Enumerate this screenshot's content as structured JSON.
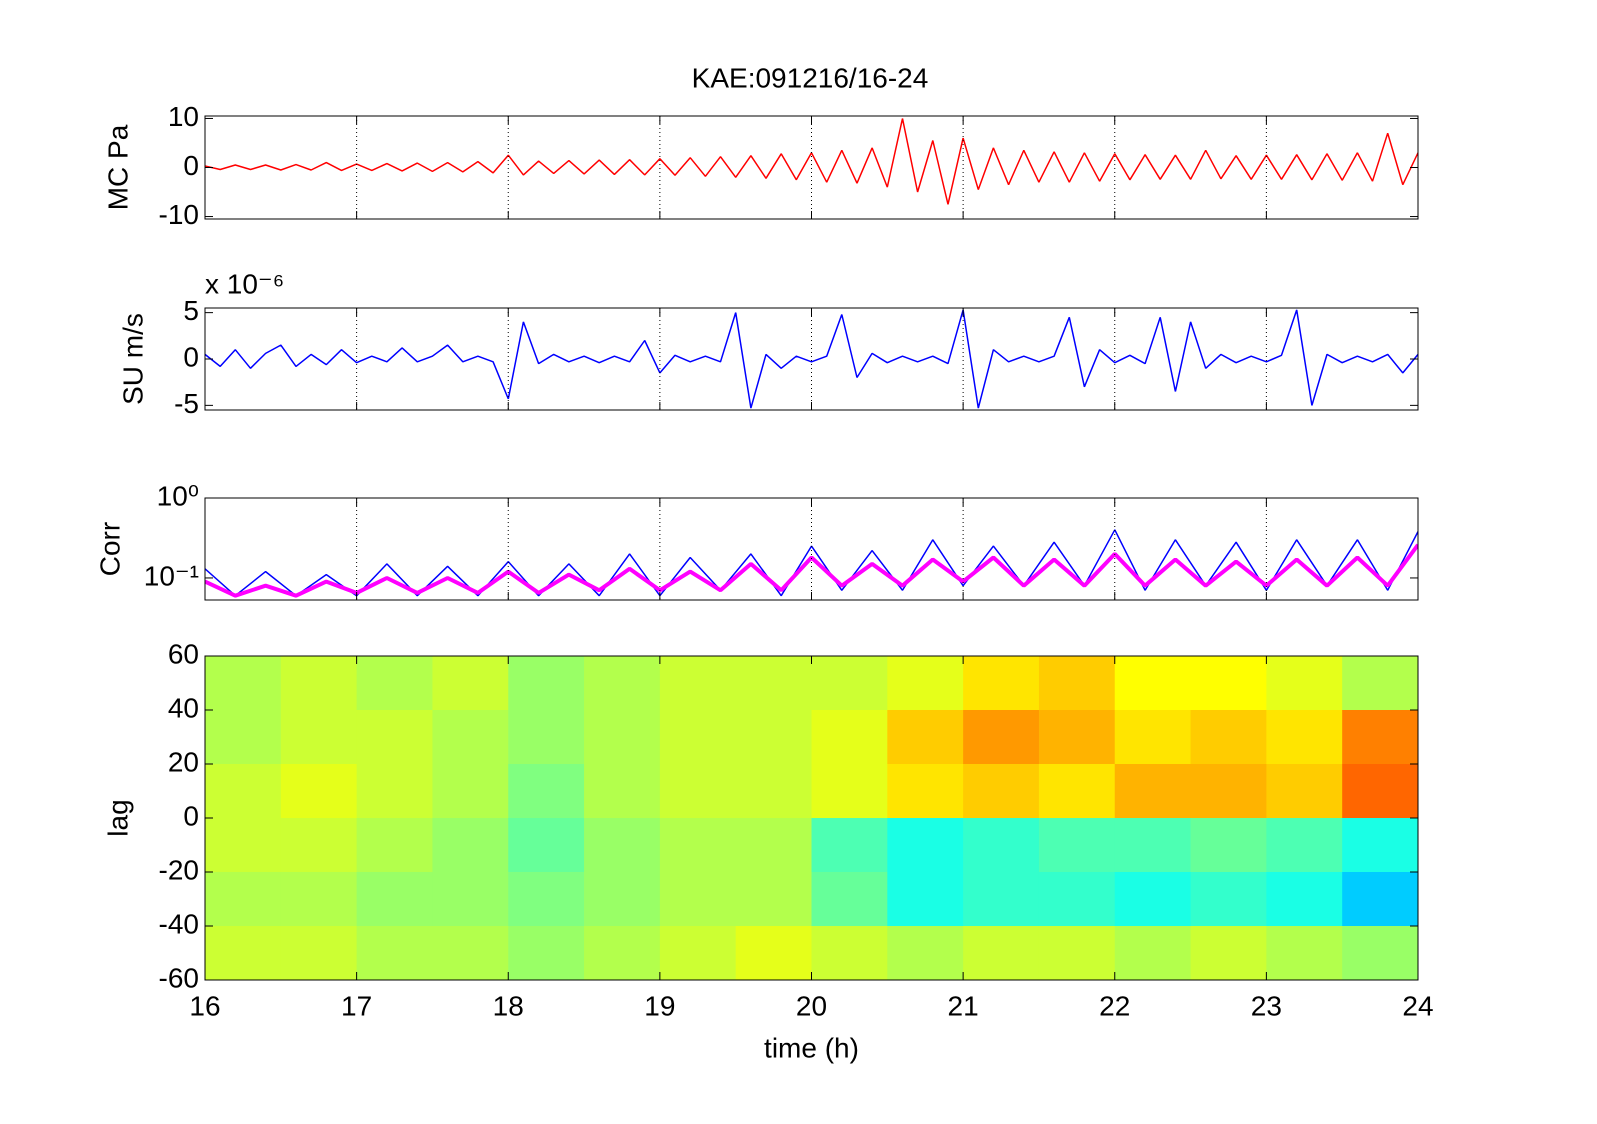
{
  "chart_data": [
    {
      "type": "line",
      "title": "KAE:091216/16-24",
      "ylabel": "MC Pa",
      "color": "#ff0000",
      "xlim": [
        16,
        24
      ],
      "xticks": [
        16,
        17,
        18,
        19,
        20,
        21,
        22,
        23,
        24
      ],
      "grid": true,
      "ylim": [
        -10.5,
        10.5
      ],
      "yticks": [
        -10,
        0,
        10
      ],
      "x": [
        16.0,
        16.1,
        16.2,
        16.3,
        16.4,
        16.5,
        16.6,
        16.7,
        16.8,
        16.9,
        17.0,
        17.1,
        17.2,
        17.3,
        17.4,
        17.5,
        17.6,
        17.7,
        17.8,
        17.9,
        18.0,
        18.1,
        18.2,
        18.3,
        18.4,
        18.5,
        18.6,
        18.7,
        18.8,
        18.9,
        19.0,
        19.1,
        19.2,
        19.3,
        19.4,
        19.5,
        19.6,
        19.7,
        19.8,
        19.9,
        20.0,
        20.1,
        20.2,
        20.3,
        20.4,
        20.5,
        20.6,
        20.7,
        20.8,
        20.9,
        21.0,
        21.1,
        21.2,
        21.3,
        21.4,
        21.5,
        21.6,
        21.7,
        21.8,
        21.9,
        22.0,
        22.1,
        22.2,
        22.3,
        22.4,
        22.5,
        22.6,
        22.7,
        22.8,
        22.9,
        23.0,
        23.1,
        23.2,
        23.3,
        23.4,
        23.5,
        23.6,
        23.7,
        23.8,
        23.9,
        24.0
      ],
      "values": [
        0.3,
        -0.4,
        0.5,
        -0.4,
        0.5,
        -0.5,
        0.6,
        -0.5,
        1.0,
        -0.6,
        0.7,
        -0.6,
        0.8,
        -0.7,
        0.9,
        -0.8,
        1.0,
        -0.9,
        1.2,
        -1.1,
        2.5,
        -1.5,
        1.3,
        -1.2,
        1.4,
        -1.3,
        1.5,
        -1.4,
        1.6,
        -1.5,
        1.8,
        -1.6,
        2.0,
        -1.8,
        2.2,
        -2.0,
        2.4,
        -2.2,
        2.8,
        -2.5,
        3.0,
        -3.0,
        3.5,
        -3.2,
        4.0,
        -4.0,
        10.0,
        -5.0,
        5.5,
        -7.5,
        6.0,
        -4.5,
        4.0,
        -3.5,
        3.5,
        -3.0,
        3.2,
        -3.0,
        3.0,
        -2.8,
        2.8,
        -2.5,
        2.6,
        -2.4,
        2.5,
        -2.4,
        3.5,
        -2.3,
        2.4,
        -2.4,
        2.5,
        -2.4,
        2.6,
        -2.5,
        2.8,
        -2.6,
        3.0,
        -2.8,
        7.0,
        -3.5,
        3.0
      ]
    },
    {
      "type": "line",
      "ylabel": "SU m/s",
      "exponent_label": "x 10⁻⁶",
      "color": "#0000ff",
      "xlim": [
        16,
        24
      ],
      "xticks": [
        16,
        17,
        18,
        19,
        20,
        21,
        22,
        23,
        24
      ],
      "grid": true,
      "ylim": [
        -5.5,
        5.5
      ],
      "yticks": [
        -5,
        0,
        5
      ],
      "x": [
        16.0,
        16.1,
        16.2,
        16.3,
        16.4,
        16.5,
        16.6,
        16.7,
        16.8,
        16.9,
        17.0,
        17.1,
        17.2,
        17.3,
        17.4,
        17.5,
        17.6,
        17.7,
        17.8,
        17.9,
        18.0,
        18.1,
        18.2,
        18.3,
        18.4,
        18.5,
        18.6,
        18.7,
        18.8,
        18.9,
        19.0,
        19.1,
        19.2,
        19.3,
        19.4,
        19.5,
        19.6,
        19.7,
        19.8,
        19.9,
        20.0,
        20.1,
        20.2,
        20.3,
        20.4,
        20.5,
        20.6,
        20.7,
        20.8,
        20.9,
        21.0,
        21.1,
        21.2,
        21.3,
        21.4,
        21.5,
        21.6,
        21.7,
        21.8,
        21.9,
        22.0,
        22.1,
        22.2,
        22.3,
        22.4,
        22.5,
        22.6,
        22.7,
        22.8,
        22.9,
        23.0,
        23.1,
        23.2,
        23.3,
        23.4,
        23.5,
        23.6,
        23.7,
        23.8,
        23.9,
        24.0
      ],
      "values": [
        0.5,
        -0.8,
        1.0,
        -1.0,
        0.6,
        1.5,
        -0.8,
        0.5,
        -0.6,
        1.0,
        -0.4,
        0.3,
        -0.3,
        1.2,
        -0.3,
        0.3,
        1.5,
        -0.3,
        0.3,
        -0.3,
        -4.3,
        4.0,
        -0.5,
        0.5,
        -0.3,
        0.3,
        -0.4,
        0.3,
        -0.3,
        2.0,
        -1.5,
        0.4,
        -0.3,
        0.3,
        -0.3,
        5.0,
        -5.3,
        0.5,
        -1.0,
        0.3,
        -0.3,
        0.3,
        4.8,
        -2.0,
        0.6,
        -0.4,
        0.3,
        -0.3,
        0.3,
        -0.5,
        5.3,
        -5.3,
        1.0,
        -0.3,
        0.3,
        -0.3,
        0.3,
        4.5,
        -3.0,
        1.0,
        -0.4,
        0.4,
        -0.5,
        4.5,
        -3.5,
        4.0,
        -1.0,
        0.5,
        -0.4,
        0.3,
        -0.3,
        0.4,
        5.3,
        -5.0,
        0.5,
        -0.4,
        0.3,
        -0.3,
        0.5,
        -1.5,
        0.5
      ]
    },
    {
      "type": "line",
      "ylabel": "Corr",
      "log_y": true,
      "xlim": [
        16,
        24
      ],
      "xticks": [
        16,
        17,
        18,
        19,
        20,
        21,
        22,
        23,
        24
      ],
      "grid": true,
      "ylim": [
        0.053,
        1
      ],
      "yticks": [
        {
          "value": 0.1,
          "label": "10⁻¹"
        },
        {
          "value": 1,
          "label": "10⁰"
        }
      ],
      "x": [
        16.0,
        16.2,
        16.4,
        16.6,
        16.8,
        17.0,
        17.2,
        17.4,
        17.6,
        17.8,
        18.0,
        18.2,
        18.4,
        18.6,
        18.8,
        19.0,
        19.2,
        19.4,
        19.6,
        19.8,
        20.0,
        20.2,
        20.4,
        20.6,
        20.8,
        21.0,
        21.2,
        21.4,
        21.6,
        21.8,
        22.0,
        22.2,
        22.4,
        22.6,
        22.8,
        23.0,
        23.2,
        23.4,
        23.6,
        23.8,
        24.0
      ],
      "series": [
        {
          "color": "#0000ff",
          "values": [
            0.13,
            0.06,
            0.12,
            0.06,
            0.11,
            0.06,
            0.15,
            0.06,
            0.14,
            0.06,
            0.16,
            0.06,
            0.15,
            0.06,
            0.2,
            0.06,
            0.18,
            0.07,
            0.2,
            0.06,
            0.25,
            0.07,
            0.22,
            0.07,
            0.3,
            0.08,
            0.25,
            0.08,
            0.28,
            0.08,
            0.4,
            0.07,
            0.3,
            0.08,
            0.28,
            0.07,
            0.3,
            0.08,
            0.3,
            0.07,
            0.38
          ]
        },
        {
          "color": "#ff00ff",
          "values": [
            0.09,
            0.06,
            0.08,
            0.06,
            0.09,
            0.065,
            0.1,
            0.065,
            0.1,
            0.065,
            0.12,
            0.065,
            0.11,
            0.07,
            0.13,
            0.07,
            0.12,
            0.07,
            0.15,
            0.07,
            0.18,
            0.08,
            0.15,
            0.08,
            0.17,
            0.09,
            0.18,
            0.08,
            0.17,
            0.08,
            0.2,
            0.08,
            0.17,
            0.08,
            0.16,
            0.08,
            0.17,
            0.08,
            0.18,
            0.08,
            0.26
          ]
        }
      ]
    },
    {
      "type": "heatmap",
      "ylabel": "lag",
      "xlabel": "time (h)",
      "colormap": "jet",
      "clim": [
        -1,
        1
      ],
      "xlim": [
        16,
        24
      ],
      "xticks": [
        16,
        17,
        18,
        19,
        20,
        21,
        22,
        23,
        24
      ],
      "ylim": [
        -60,
        60
      ],
      "yticks": [
        -60,
        -40,
        -20,
        0,
        20,
        40,
        60
      ],
      "xbins": [
        16.0,
        16.5,
        17.0,
        17.5,
        18.0,
        18.5,
        19.0,
        19.5,
        20.0,
        20.5,
        21.0,
        21.5,
        22.0,
        22.5,
        23.0,
        23.5,
        24.0
      ],
      "ybins": [
        60,
        40,
        20,
        0,
        -20,
        -40,
        -60
      ],
      "z": [
        [
          0.1,
          0.15,
          0.1,
          0.15,
          0.05,
          0.1,
          0.15,
          0.15,
          0.15,
          0.2,
          0.3,
          0.35,
          0.25,
          0.25,
          0.2,
          0.1
        ],
        [
          0.1,
          0.15,
          0.15,
          0.1,
          0.05,
          0.1,
          0.15,
          0.15,
          0.2,
          0.35,
          0.45,
          0.4,
          0.3,
          0.35,
          0.3,
          0.5
        ],
        [
          0.15,
          0.2,
          0.15,
          0.1,
          0.0,
          0.1,
          0.15,
          0.15,
          0.2,
          0.3,
          0.35,
          0.3,
          0.4,
          0.4,
          0.35,
          0.55
        ],
        [
          0.15,
          0.15,
          0.1,
          0.05,
          -0.05,
          0.05,
          0.1,
          0.1,
          -0.1,
          -0.2,
          -0.15,
          -0.1,
          -0.1,
          -0.05,
          -0.1,
          -0.2
        ],
        [
          0.1,
          0.1,
          0.05,
          0.05,
          0.0,
          0.05,
          0.1,
          0.1,
          -0.05,
          -0.2,
          -0.15,
          -0.15,
          -0.2,
          -0.15,
          -0.2,
          -0.35
        ],
        [
          0.15,
          0.15,
          0.1,
          0.1,
          0.05,
          0.1,
          0.15,
          0.2,
          0.15,
          0.1,
          0.15,
          0.15,
          0.1,
          0.15,
          0.1,
          0.05
        ]
      ]
    }
  ]
}
